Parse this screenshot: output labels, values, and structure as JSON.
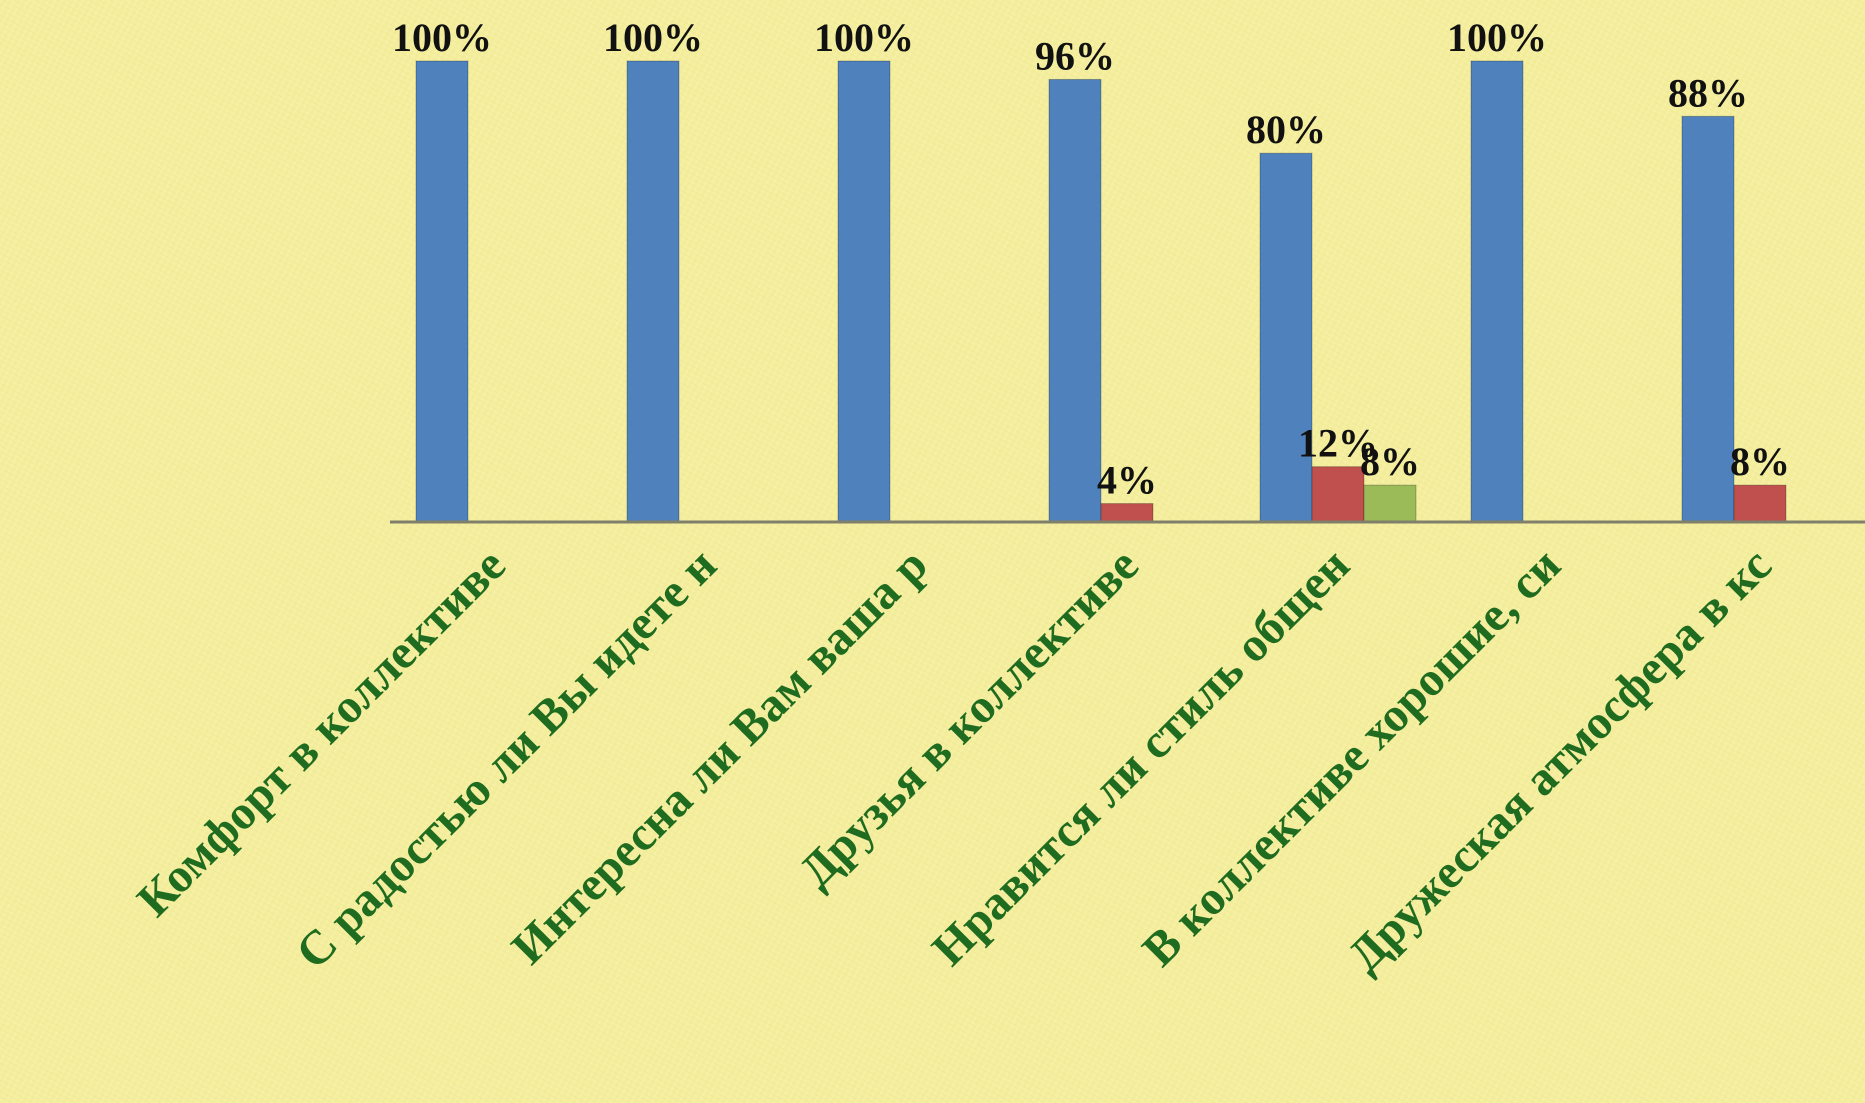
{
  "chart_data": {
    "type": "bar",
    "categories": [
      "Комфорт в коллективе",
      "С радостью ли Вы идете н",
      "Интересна ли Вам ваша р",
      "Друзья в коллективе",
      "Нравится ли стиль общен",
      "В коллективе хорошие, си",
      "Дружеская атмосфера в кс"
    ],
    "series": [
      {
        "values": [
          100,
          100,
          100,
          96,
          80,
          100,
          88
        ],
        "color": "#4f81bd"
      },
      {
        "values": [
          null,
          null,
          null,
          4,
          12,
          null,
          8
        ],
        "color": "#c0504d"
      },
      {
        "values": [
          null,
          null,
          null,
          null,
          8,
          null,
          null
        ],
        "color": "#9bbb59"
      }
    ],
    "value_suffix": "%",
    "ylim": [
      0,
      100
    ],
    "grid": false,
    "legend": false
  }
}
